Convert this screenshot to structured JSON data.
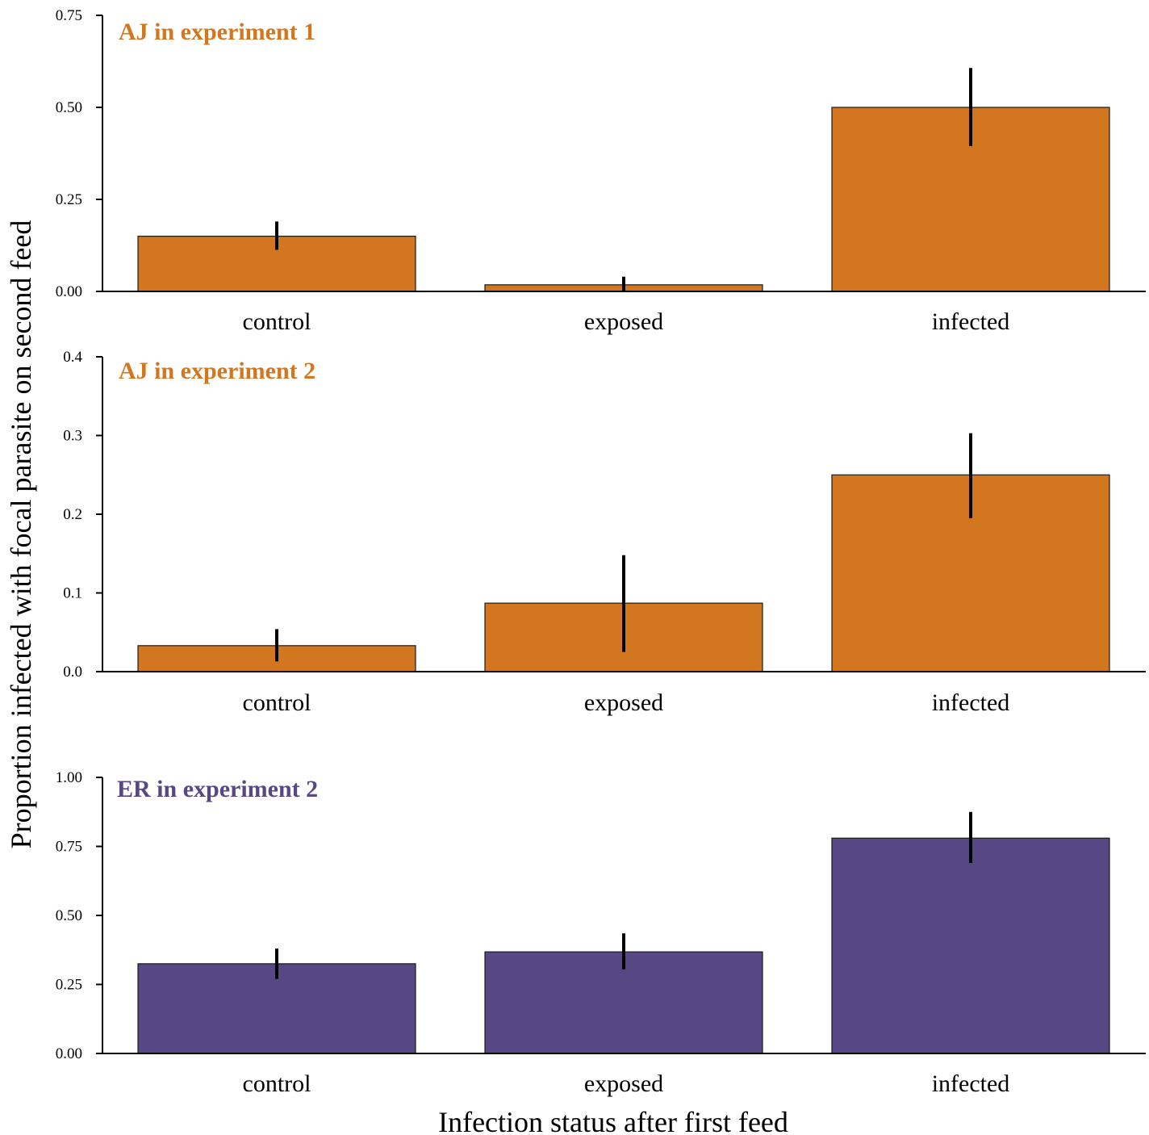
{
  "chart_data": [
    {
      "type": "bar",
      "title": "AJ in experiment 1",
      "categories": [
        "control",
        "exposed",
        "infected"
      ],
      "values": [
        0.15,
        0.018,
        0.5
      ],
      "error_low": [
        0.113,
        0.0,
        0.395
      ],
      "error_high": [
        0.19,
        0.04,
        0.607
      ],
      "ylim": [
        0,
        0.75
      ],
      "yticks": [
        "0.00",
        "0.25",
        "0.50",
        "0.75"
      ],
      "bar_color": "#d2761f",
      "title_color": "#d2761f"
    },
    {
      "type": "bar",
      "title": "AJ in experiment 2",
      "categories": [
        "control",
        "exposed",
        "infected"
      ],
      "values": [
        0.033,
        0.087,
        0.25
      ],
      "error_low": [
        0.013,
        0.025,
        0.195
      ],
      "error_high": [
        0.054,
        0.148,
        0.303
      ],
      "ylim": [
        0,
        0.4
      ],
      "yticks": [
        "0.0",
        "0.1",
        "0.2",
        "0.3",
        "0.4"
      ],
      "bar_color": "#d2761f",
      "title_color": "#d2761f"
    },
    {
      "type": "bar",
      "title": "ER in experiment 2",
      "categories": [
        "control",
        "exposed",
        "infected"
      ],
      "values": [
        0.325,
        0.368,
        0.78
      ],
      "error_low": [
        0.27,
        0.305,
        0.69
      ],
      "error_high": [
        0.38,
        0.435,
        0.875
      ],
      "ylim": [
        0,
        1.0
      ],
      "yticks": [
        "0.00",
        "0.25",
        "0.50",
        "0.75",
        "1.00"
      ],
      "bar_color": "#574885",
      "title_color": "#574885"
    }
  ],
  "axes": {
    "ylabel": "Proportion infected with focal parasite on second feed",
    "xlabel": "Infection status after first feed"
  }
}
